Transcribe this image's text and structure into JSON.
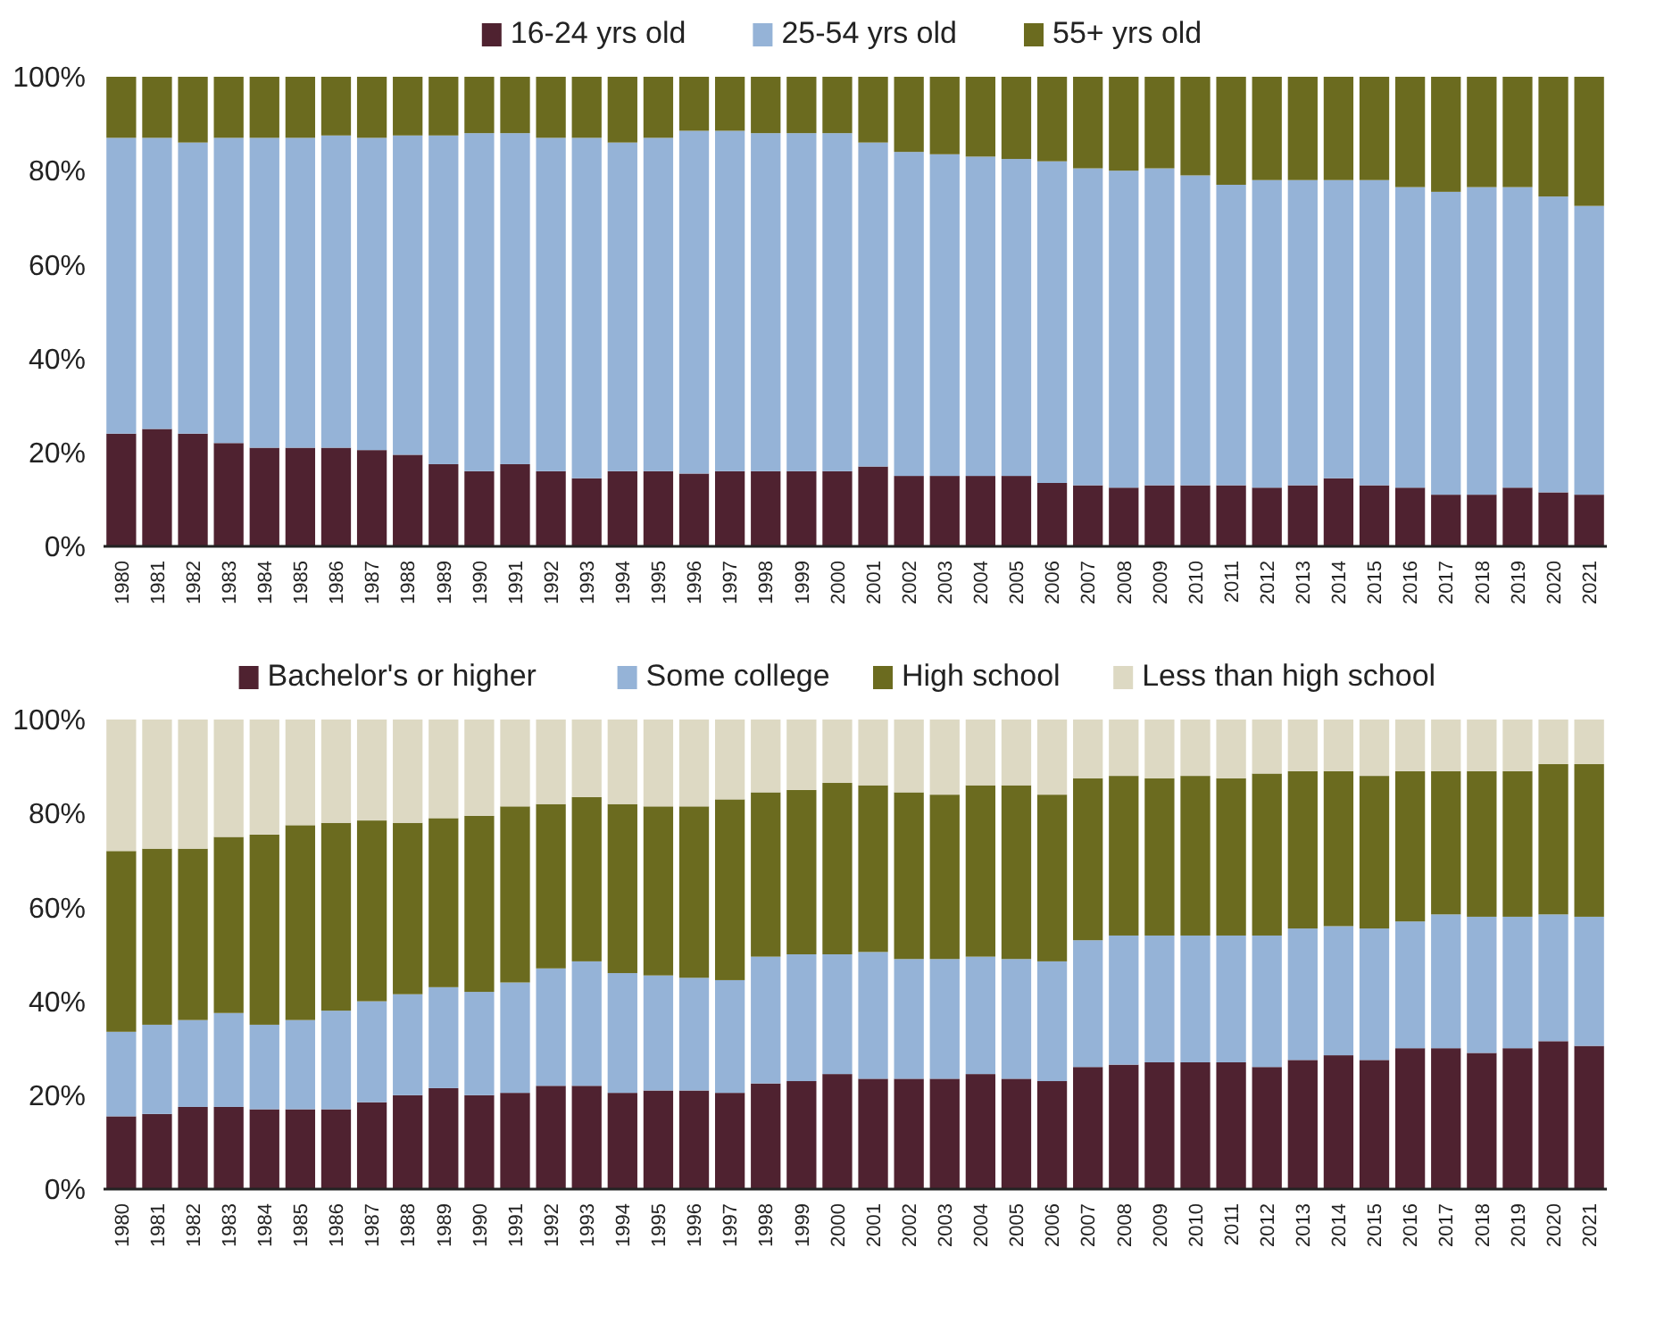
{
  "chart_data": [
    {
      "type": "bar",
      "stacked": true,
      "legend": "top",
      "categories": [
        "1980",
        "1981",
        "1982",
        "1983",
        "1984",
        "1985",
        "1986",
        "1987",
        "1988",
        "1989",
        "1990",
        "1991",
        "1992",
        "1993",
        "1994",
        "1995",
        "1996",
        "1997",
        "1998",
        "1999",
        "2000",
        "2001",
        "2002",
        "2003",
        "2004",
        "2005",
        "2006",
        "2007",
        "2008",
        "2009",
        "2010",
        "2011",
        "2012",
        "2013",
        "2014",
        "2015",
        "2016",
        "2017",
        "2018",
        "2019",
        "2020",
        "2021"
      ],
      "ylim": [
        0,
        100
      ],
      "yticks": [
        {
          "value": 0,
          "label": "0%"
        },
        {
          "value": 20,
          "label": "20%"
        },
        {
          "value": 40,
          "label": "40%"
        },
        {
          "value": 60,
          "label": "60%"
        },
        {
          "value": 80,
          "label": "80%"
        },
        {
          "value": 100,
          "label": "100%"
        }
      ],
      "series": [
        {
          "name": "16-24 yrs old",
          "color": "#4f2230",
          "values": [
            24,
            25,
            24,
            22,
            21,
            21,
            21,
            20.5,
            19.5,
            17.5,
            16,
            17.5,
            16,
            14.5,
            16,
            16,
            15.5,
            16,
            16,
            16,
            16,
            17,
            15,
            15,
            15,
            15,
            13.5,
            13,
            12.5,
            13,
            13,
            13,
            12.5,
            13,
            14.5,
            13,
            12.5,
            11,
            11,
            12.5,
            11.5,
            11
          ]
        },
        {
          "name": "25-54 yrs old",
          "color": "#95b3d7",
          "values": [
            63,
            62,
            62,
            65,
            66,
            66,
            66.5,
            66.5,
            68,
            70,
            72,
            70.5,
            71,
            72.5,
            70,
            71,
            73,
            72.5,
            72,
            72,
            72,
            69,
            69,
            68.5,
            68,
            67.5,
            68.5,
            67.5,
            67.5,
            67.5,
            66,
            64,
            65.5,
            65,
            63.5,
            65,
            64,
            64.5,
            65.5,
            64,
            63,
            61.5
          ]
        },
        {
          "name": "55+ yrs old",
          "color": "#6b6b1f",
          "values": [
            13,
            13,
            14,
            13,
            13,
            13,
            12.5,
            13,
            12.5,
            12.5,
            12,
            12,
            13,
            13,
            14,
            13,
            11.5,
            11.5,
            12,
            12,
            12,
            14,
            16,
            16.5,
            17,
            17.5,
            18,
            19.5,
            20,
            19.5,
            21,
            23,
            22,
            22,
            22,
            22,
            23.5,
            24.5,
            23.5,
            23.5,
            25.5,
            27.5
          ]
        }
      ]
    },
    {
      "type": "bar",
      "stacked": true,
      "legend": "top",
      "categories": [
        "1980",
        "1981",
        "1982",
        "1983",
        "1984",
        "1985",
        "1986",
        "1987",
        "1988",
        "1989",
        "1990",
        "1991",
        "1992",
        "1993",
        "1994",
        "1995",
        "1996",
        "1997",
        "1998",
        "1999",
        "2000",
        "2001",
        "2002",
        "2003",
        "2004",
        "2005",
        "2006",
        "2007",
        "2008",
        "2009",
        "2010",
        "2011",
        "2012",
        "2013",
        "2014",
        "2015",
        "2016",
        "2017",
        "2018",
        "2019",
        "2020",
        "2021"
      ],
      "ylim": [
        0,
        100
      ],
      "yticks": [
        {
          "value": 0,
          "label": "0%"
        },
        {
          "value": 20,
          "label": "20%"
        },
        {
          "value": 40,
          "label": "40%"
        },
        {
          "value": 60,
          "label": "60%"
        },
        {
          "value": 80,
          "label": "80%"
        },
        {
          "value": 100,
          "label": "100%"
        }
      ],
      "series": [
        {
          "name": "Bachelor's or higher",
          "color": "#4f2230",
          "values": [
            15.5,
            16,
            17.5,
            17.5,
            17,
            17,
            17,
            18.5,
            20,
            21.5,
            20,
            20.5,
            22,
            22,
            20.5,
            21,
            21,
            20.5,
            22.5,
            23,
            24.5,
            23.5,
            23.5,
            23.5,
            24.5,
            23.5,
            23,
            26,
            26.5,
            27,
            27,
            27,
            26,
            27.5,
            28.5,
            27.5,
            30,
            30,
            29,
            30,
            31.5,
            30.5
          ]
        },
        {
          "name": "Some college",
          "color": "#95b3d7",
          "values": [
            18,
            19,
            18.5,
            20,
            18,
            19,
            21,
            21.5,
            21.5,
            21.5,
            22,
            23.5,
            25,
            26.5,
            25.5,
            24.5,
            24,
            24,
            27,
            27,
            25.5,
            27,
            25.5,
            25.5,
            25,
            25.5,
            25.5,
            27,
            27.5,
            27,
            27,
            27,
            28,
            28,
            27.5,
            28,
            27,
            28.5,
            29,
            28,
            27,
            27.5
          ]
        },
        {
          "name": "High school",
          "color": "#6b6b1f",
          "values": [
            38.5,
            37.5,
            36.5,
            37.5,
            40.5,
            41.5,
            40,
            38.5,
            36.5,
            36,
            37.5,
            37.5,
            35,
            35,
            36,
            36,
            36.5,
            38.5,
            35,
            35,
            36.5,
            35.5,
            35.5,
            35,
            36.5,
            37,
            35.5,
            34.5,
            34,
            33.5,
            34,
            33.5,
            34.5,
            33.5,
            33,
            32.5,
            32,
            30.5,
            31,
            31,
            32,
            32.5
          ]
        },
        {
          "name": "Less than high school",
          "color": "#ddd9c3",
          "values": [
            28,
            27.5,
            27.5,
            25,
            24.5,
            22.5,
            22,
            21.5,
            22,
            21,
            20.5,
            18.5,
            18,
            16.5,
            18,
            18.5,
            18.5,
            17,
            15.5,
            15,
            13.5,
            14,
            15.5,
            16,
            14,
            14,
            16,
            12.5,
            12,
            12.5,
            12,
            12.5,
            11.5,
            11,
            11,
            12,
            11,
            11,
            11,
            11,
            9.5,
            9.5
          ]
        }
      ]
    }
  ]
}
